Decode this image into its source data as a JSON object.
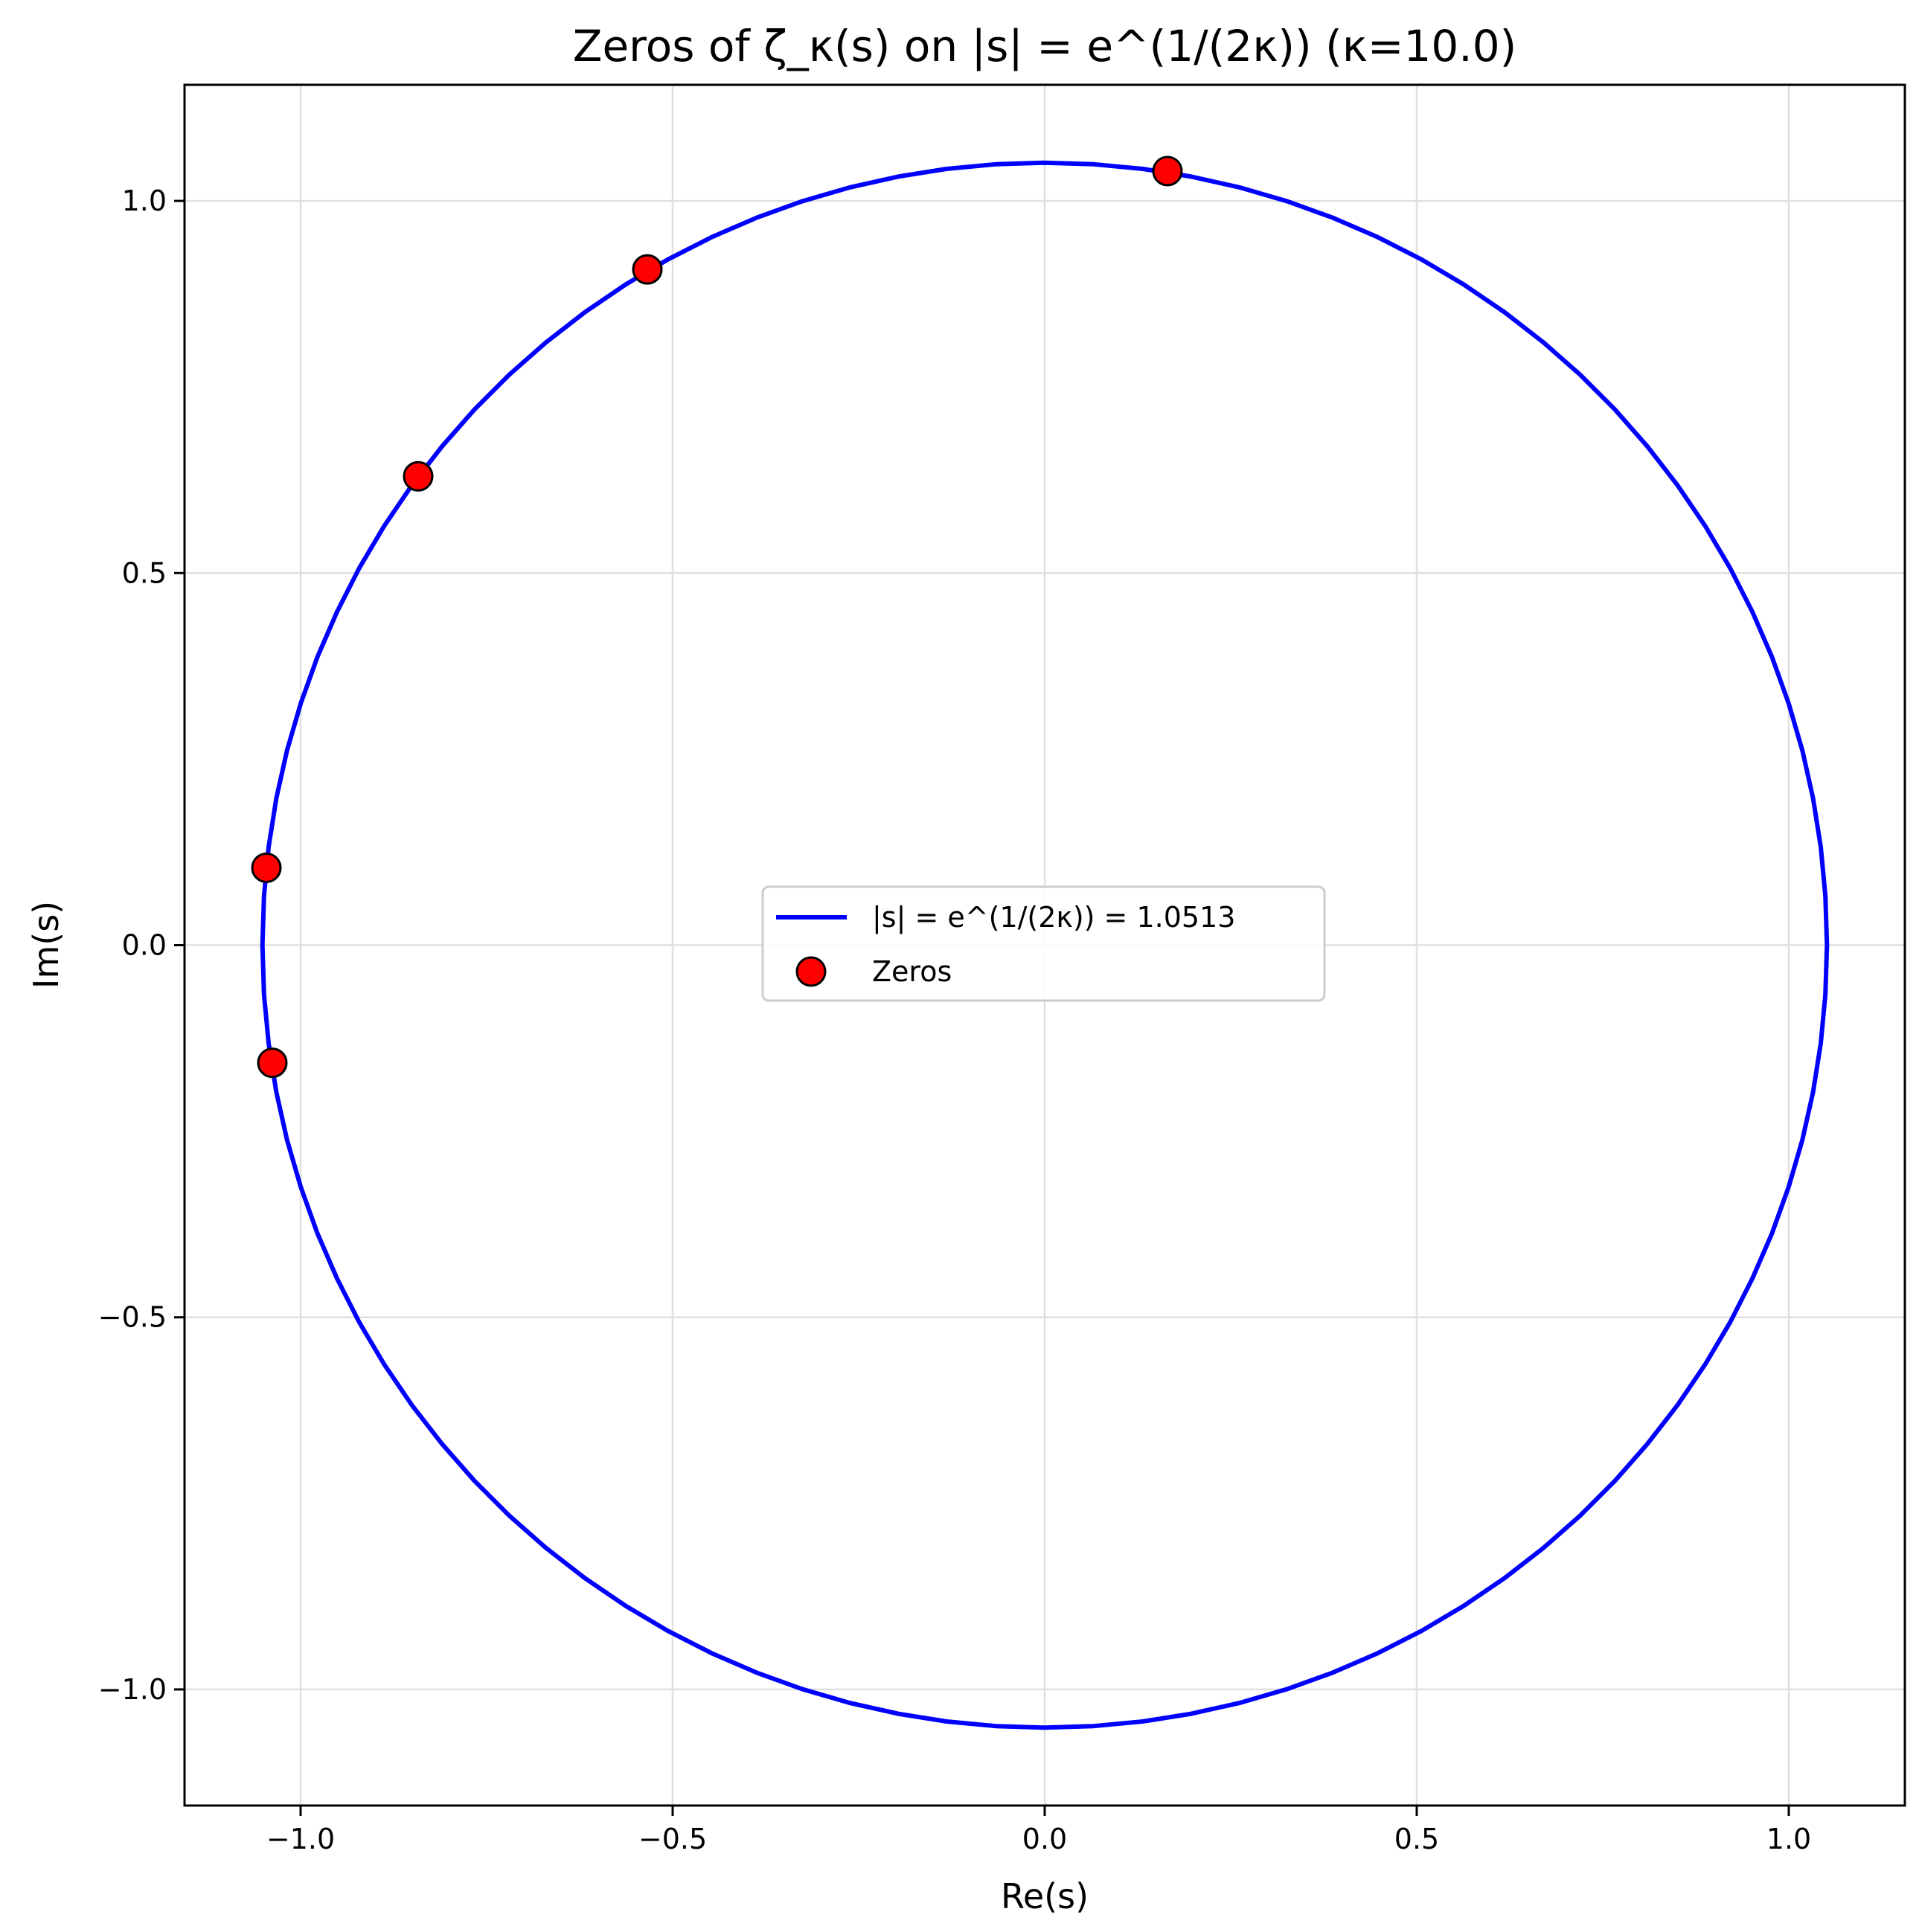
{
  "chart_data": {
    "type": "scatter",
    "title": "Zeros of ζ_κ(s) on |s| = e^(1/(2κ)) (κ=10.0)",
    "xlabel": "Re(s)",
    "ylabel": "Im(s)",
    "xlim": [
      -1.156,
      1.156
    ],
    "ylim": [
      -1.156,
      1.156
    ],
    "grid": true,
    "x_ticks": [
      -1.0,
      -0.5,
      0.0,
      0.5,
      1.0
    ],
    "x_tick_labels": [
      "−1.0",
      "−0.5",
      "0.0",
      "0.5",
      "1.0"
    ],
    "y_ticks": [
      -1.0,
      -0.5,
      0.0,
      0.5,
      1.0
    ],
    "y_tick_labels": [
      "−1.0",
      "−0.5",
      "0.0",
      "0.5",
      "1.0"
    ],
    "legend_position": "center",
    "series": [
      {
        "name": "|s| = e^(1/(2κ)) = 1.0513",
        "kind": "circle",
        "radius": 1.0513,
        "color": "#0000ff"
      },
      {
        "name": "Zeros",
        "kind": "points",
        "color": "#ff0000",
        "edge_color": "#000000",
        "x": [
          0.165,
          -0.534,
          -0.842,
          -1.046,
          -1.038
        ],
        "y": [
          1.04,
          0.908,
          0.63,
          0.104,
          -0.158
        ]
      }
    ]
  }
}
